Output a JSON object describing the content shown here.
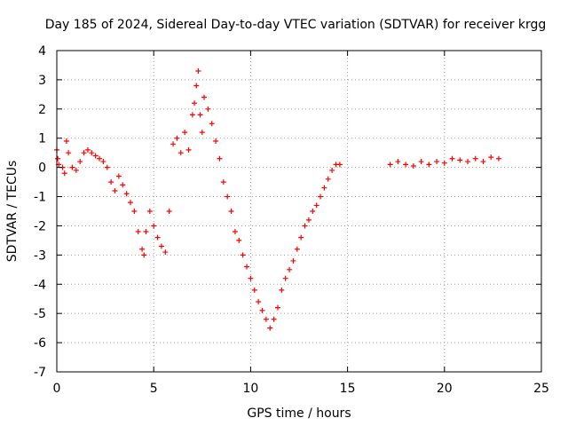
{
  "chart_data": {
    "type": "scatter",
    "title": "Day 185 of 2024, Sidereal Day-to-day VTEC variation (SDTVAR) for receiver krgg",
    "xlabel": "GPS time / hours",
    "ylabel": "SDTVAR / TECUs",
    "xlim": [
      0,
      25
    ],
    "ylim": [
      -7,
      4
    ],
    "xticks": [
      "0",
      "5",
      "10",
      "15",
      "20",
      "25"
    ],
    "yticks": [
      "4",
      "3",
      "2",
      "1",
      "0",
      "-1",
      "-2",
      "-3",
      "-4",
      "-5",
      "-6",
      "-7"
    ],
    "grid": true,
    "marker": "+",
    "color": "#ff0000",
    "series": [
      {
        "name": "SDTVAR",
        "x": [
          0.0,
          0.05,
          0.1,
          0.3,
          0.4,
          0.5,
          0.6,
          0.8,
          1.0,
          1.2,
          1.4,
          1.6,
          1.8,
          2.0,
          2.2,
          2.4,
          2.6,
          2.8,
          3.0,
          3.2,
          3.4,
          3.6,
          3.8,
          4.0,
          4.2,
          4.4,
          4.5,
          4.6,
          4.8,
          5.0,
          5.2,
          5.4,
          5.6,
          5.8,
          6.0,
          6.2,
          6.4,
          6.6,
          6.8,
          7.0,
          7.1,
          7.2,
          7.3,
          7.4,
          7.5,
          7.6,
          7.8,
          8.0,
          8.2,
          8.4,
          8.6,
          8.8,
          9.0,
          9.2,
          9.4,
          9.6,
          9.8,
          10.0,
          10.2,
          10.4,
          10.6,
          10.8,
          11.0,
          11.2,
          11.4,
          11.6,
          11.8,
          12.0,
          12.2,
          12.4,
          12.6,
          12.8,
          13.0,
          13.2,
          13.4,
          13.6,
          13.8,
          14.0,
          14.2,
          14.4,
          14.6,
          17.2,
          17.6,
          18.0,
          18.4,
          18.8,
          19.2,
          19.6,
          20.0,
          20.4,
          20.8,
          21.2,
          21.6,
          22.0,
          22.4,
          22.8
        ],
        "y": [
          0.6,
          0.3,
          0.1,
          0.0,
          -0.2,
          0.9,
          0.5,
          0.0,
          -0.1,
          0.2,
          0.5,
          0.6,
          0.5,
          0.4,
          0.3,
          0.2,
          0.0,
          -0.5,
          -0.8,
          -0.3,
          -0.6,
          -0.9,
          -1.2,
          -1.5,
          -2.2,
          -2.8,
          -3.0,
          -2.2,
          -1.5,
          -2.0,
          -2.4,
          -2.7,
          -2.9,
          -1.5,
          0.8,
          1.0,
          0.5,
          1.2,
          0.6,
          1.8,
          2.2,
          2.8,
          3.3,
          1.8,
          1.2,
          2.4,
          2.0,
          1.5,
          0.9,
          0.3,
          -0.5,
          -1.0,
          -1.5,
          -2.2,
          -2.5,
          -3.0,
          -3.4,
          -3.8,
          -4.2,
          -4.6,
          -4.9,
          -5.2,
          -5.5,
          -5.2,
          -4.8,
          -4.2,
          -3.8,
          -3.5,
          -3.2,
          -2.8,
          -2.4,
          -2.0,
          -1.8,
          -1.5,
          -1.3,
          -1.0,
          -0.7,
          -0.4,
          -0.1,
          0.1,
          0.1,
          0.1,
          0.2,
          0.1,
          0.05,
          0.2,
          0.1,
          0.2,
          0.15,
          0.3,
          0.25,
          0.2,
          0.3,
          0.2,
          0.35,
          0.3
        ]
      }
    ]
  }
}
